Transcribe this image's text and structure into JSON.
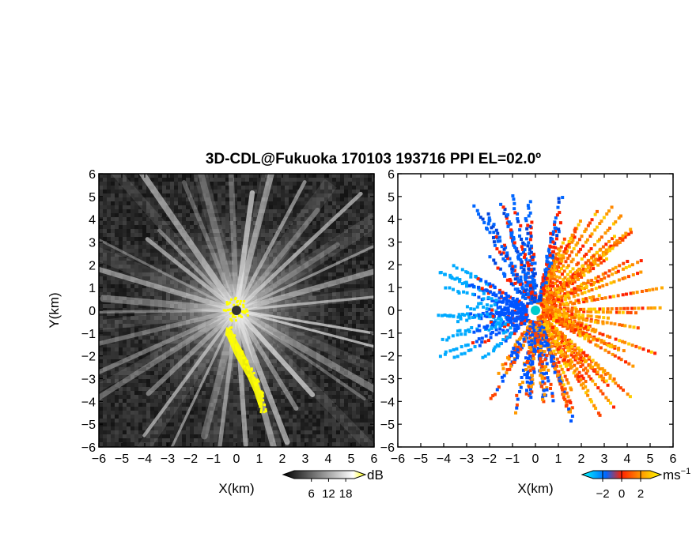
{
  "figure": {
    "title": "3D-CDL@Fukuoka 170103 193716 PPI EL=02.0º"
  },
  "chart_data": [
    {
      "type": "heatmap",
      "name": "intensity-ppi",
      "xlabel": "X(km)",
      "ylabel": "Y(km)",
      "xlim": [
        -6,
        6
      ],
      "ylim": [
        -6,
        6
      ],
      "xticks": [
        -6,
        -5,
        -4,
        -3,
        -2,
        -1,
        0,
        1,
        2,
        3,
        4,
        5,
        6
      ],
      "yticks": [
        -6,
        -5,
        -4,
        -3,
        -2,
        -1,
        0,
        1,
        2,
        3,
        4,
        5,
        6
      ],
      "colorbar": {
        "label": "dB",
        "ticks": [
          6,
          12,
          18
        ],
        "range": [
          0,
          21
        ],
        "colors": [
          "#000000",
          "#ffffff",
          "#ffff00"
        ]
      },
      "highlight_color": "#ffff00",
      "background_color": "#1a1a1a"
    },
    {
      "type": "heatmap",
      "name": "doppler-velocity-ppi",
      "xlabel": "X(km)",
      "ylabel": "",
      "xlim": [
        -6,
        6
      ],
      "ylim": [
        -6,
        6
      ],
      "xticks": [
        -6,
        -5,
        -4,
        -3,
        -2,
        -1,
        0,
        1,
        2,
        3,
        4,
        5,
        6
      ],
      "yticks": [
        -6,
        -5,
        -4,
        -3,
        -2,
        -1,
        0,
        1,
        2,
        3,
        4,
        5,
        6
      ],
      "colorbar": {
        "label": "ms",
        "label_exp": "−1",
        "ticks": [
          -2,
          0,
          2
        ],
        "range": [
          -3,
          3
        ],
        "colors": [
          "#00ffff",
          "#0066ff",
          "#ff2200",
          "#ff9900",
          "#ffff00"
        ]
      },
      "center_marker_color": "#00cccc"
    }
  ]
}
